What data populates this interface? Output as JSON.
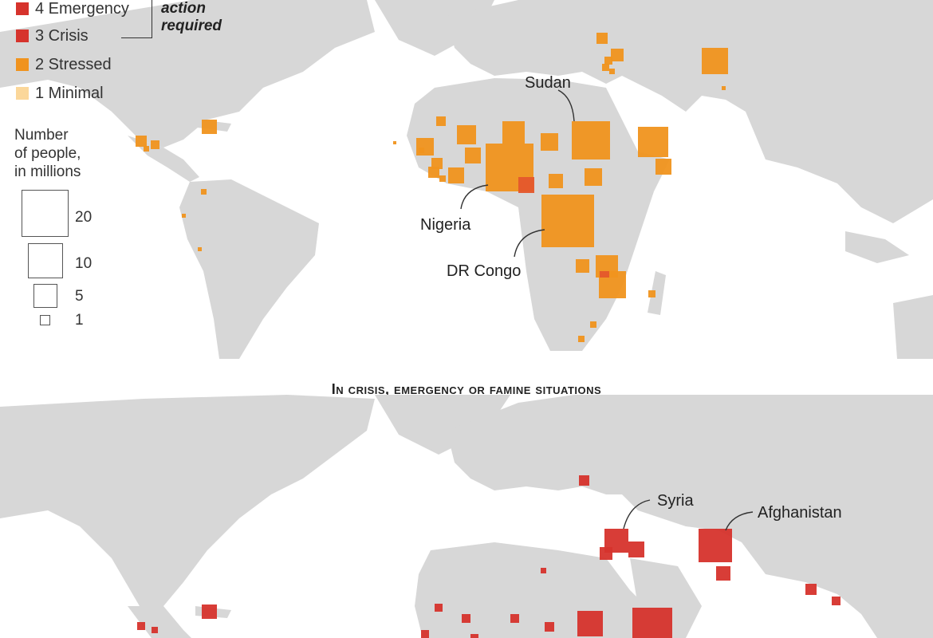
{
  "legend": {
    "phases": [
      {
        "label": "4 Emergency",
        "color": "#d6332c"
      },
      {
        "label": "3 Crisis",
        "color": "#d6332c"
      },
      {
        "label": "2 Stressed",
        "color": "#f0931e"
      },
      {
        "label": "1 Minimal",
        "color": "#fbd79a"
      }
    ],
    "bracket_note_line1": "action",
    "bracket_note_line2": "required",
    "size_title_lines": [
      "Number",
      "of people,",
      "in millions"
    ],
    "sizes": [
      "20",
      "10",
      "5",
      "1"
    ]
  },
  "section_title": "In crisis, emergency or famine situations",
  "map_labels": {
    "sudan": "Sudan",
    "nigeria": "Nigeria",
    "dr_congo": "DR Congo",
    "syria": "Syria",
    "afghanistan": "Afghanistan"
  },
  "colors": {
    "stressed": "#f0931e",
    "crisis": "#d6332c",
    "land": "#d7d7d7"
  }
}
